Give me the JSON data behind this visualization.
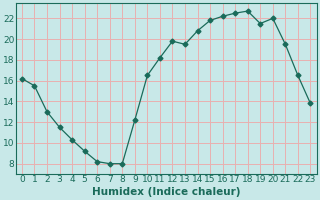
{
  "x": [
    0,
    1,
    2,
    3,
    4,
    5,
    6,
    7,
    8,
    9,
    10,
    11,
    12,
    13,
    14,
    15,
    16,
    17,
    18,
    19,
    20,
    21,
    22,
    23
  ],
  "y": [
    16.2,
    15.5,
    13.0,
    11.5,
    10.3,
    9.2,
    8.2,
    8.0,
    8.0,
    12.2,
    16.5,
    18.2,
    19.8,
    19.5,
    20.8,
    21.8,
    22.2,
    22.5,
    22.7,
    21.5,
    22.0,
    19.5,
    16.5,
    13.8
  ],
  "line_color": "#1a6b5a",
  "marker": "D",
  "marker_size": 2.5,
  "bg_color": "#c8e8e8",
  "grid_color": "#e8b0b0",
  "xlabel": "Humidex (Indice chaleur)",
  "ylabel_ticks": [
    8,
    10,
    12,
    14,
    16,
    18,
    20,
    22
  ],
  "ylim": [
    7.0,
    23.5
  ],
  "xlim": [
    -0.5,
    23.5
  ],
  "xtick_labels": [
    "0",
    "1",
    "2",
    "3",
    "4",
    "5",
    "6",
    "7",
    "8",
    "9",
    "10",
    "11",
    "12",
    "13",
    "14",
    "15",
    "16",
    "17",
    "18",
    "19",
    "20",
    "21",
    "22",
    "23"
  ],
  "xlabel_fontsize": 7.5,
  "tick_fontsize": 6.5
}
